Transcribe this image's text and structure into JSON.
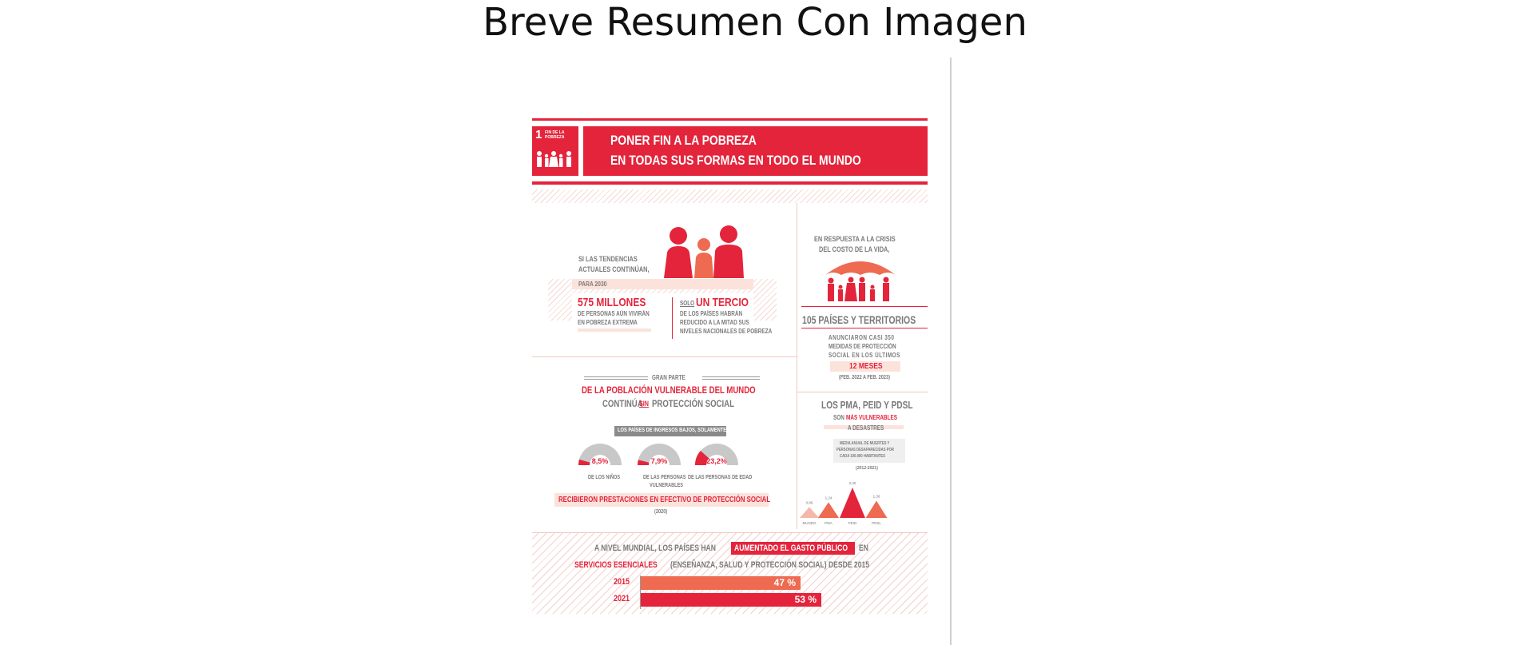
{
  "page": {
    "title": "Breve Resumen Con Imagen"
  },
  "infographic": {
    "goal_badge": {
      "number": "1",
      "label": "FIN DE LA POBREZA"
    },
    "header": {
      "line1": "PONER FIN A LA POBREZA",
      "line2": "EN TODAS SUS FORMAS EN TODO EL MUNDO"
    },
    "trends": {
      "intro1": "SI LAS TENDENCIAS",
      "intro2": "ACTUALES CONTINÚAN,",
      "year_label": "PARA 2030",
      "stat1_value": "575 MILLONES",
      "stat1_desc1": "DE PERSONAS AÚN VIVIRÁN",
      "stat1_desc2": "EN POBREZA EXTREMA",
      "stat2_prefix": "SOLO",
      "stat2_value": "UN TERCIO",
      "stat2_desc1": "DE LOS PAÍSES HABRÁN",
      "stat2_desc2": "REDUCIDO A LA MITAD SUS",
      "stat2_desc3": "NIVELES NACIONALES DE POBREZA"
    },
    "crisis": {
      "intro1": "EN RESPUESTA A LA CRISIS",
      "intro2": "DEL COSTO DE LA VIDA,",
      "count_label": "105 PAÍSES Y TERRITORIOS",
      "desc1": "ANUNCIARON CASI 350",
      "desc2": "MEDIDAS DE PROTECCIÓN",
      "desc3": "SOCIAL EN LOS ÚLTIMOS",
      "months": "12 MESES",
      "period": "(FEB. 2022 A FEB. 2023)"
    },
    "protection": {
      "kicker": "GRAN PARTE",
      "line1": "DE LA POBLACIÓN VULNERABLE DEL MUNDO",
      "line2_a": "CONTINÚA",
      "line2_b": "SIN",
      "line2_c": "PROTECCIÓN SOCIAL",
      "countries_label": "LOS PAÍSES DE INGRESOS BAJOS, SOLAMENTE",
      "gauges": [
        {
          "value": "8,5%",
          "fraction": 0.085,
          "label1": "DE LOS NIÑOS",
          "label2": ""
        },
        {
          "value": "7,9%",
          "fraction": 0.079,
          "label1": "DE LAS PERSONAS",
          "label2": "VULNERABLES"
        },
        {
          "value": "23,2%",
          "fraction": 0.232,
          "label1": "DE LAS PERSONAS DE EDAD",
          "label2": ""
        }
      ],
      "received": "RECIBIERON PRESTACIONES EN EFECTIVO DE PROTECCIÓN SOCIAL",
      "year": "(2020)"
    },
    "ldc": {
      "title": "LOS PMA, PEID Y PDSL",
      "sub_a": "SON",
      "sub_b": "MÁS VULNERABLES",
      "sub_c": "A DESASTRES",
      "note1": "MEDIA ANUAL DE MUERTES Y",
      "note2": "PERSONAS DESAPARECIDAS POR",
      "note3": "CADA 100.000 HABITANTES",
      "note4": "(2012-2021)"
    },
    "spending": {
      "line1_a": "A NIVEL MUNDIAL, LOS PAÍSES HAN",
      "line1_b": "AUMENTADO EL GASTO PÚBLICO",
      "line1_c": "EN",
      "line2_a": "SERVICIOS ESENCIALES",
      "line2_b": "(ENSEÑANZA, SALUD Y PROTECCIÓN SOCIAL) DESDE 2015",
      "bars": [
        {
          "year": "2015",
          "label": "47 %",
          "value": 47,
          "color": "#ee6a50"
        },
        {
          "year": "2021",
          "label": "53 %",
          "value": 53,
          "color": "#e4243b"
        }
      ]
    }
  },
  "chart_data": {
    "type": "bar",
    "title": "",
    "categories": [
      "MUNDO",
      "PMA",
      "PEID",
      "PDSL"
    ],
    "values": [
      0.86,
      1.24,
      2.4,
      1.36
    ],
    "value_labels": [
      "0,86",
      "1,24",
      "2,40",
      "1,36"
    ],
    "colors": [
      "#f4b8aa",
      "#ee6a50",
      "#e4243b",
      "#ee6a50"
    ],
    "ylim": [
      0,
      2.4
    ]
  }
}
